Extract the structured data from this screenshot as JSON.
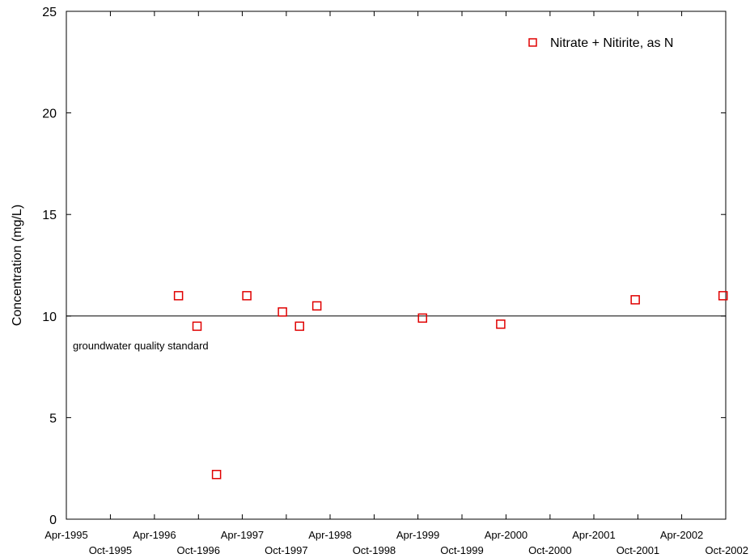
{
  "chart_data": {
    "type": "scatter",
    "ylabel": "Concentration (mg/L)",
    "ylim": [
      0,
      25
    ],
    "yticks": [
      "0",
      "5",
      "10",
      "15",
      "20",
      "25"
    ],
    "xlim": [
      "1995-04-01",
      "2002-10-01"
    ],
    "xticks_top_row": [
      {
        "date": "1995-04-01",
        "label": "Apr-1995"
      },
      {
        "date": "1996-04-01",
        "label": "Apr-1996"
      },
      {
        "date": "1997-04-01",
        "label": "Apr-1997"
      },
      {
        "date": "1998-04-01",
        "label": "Apr-1998"
      },
      {
        "date": "1999-04-01",
        "label": "Apr-1999"
      },
      {
        "date": "2000-04-01",
        "label": "Apr-2000"
      },
      {
        "date": "2001-04-01",
        "label": "Apr-2001"
      },
      {
        "date": "2002-04-01",
        "label": "Apr-2002"
      }
    ],
    "xticks_bottom_row": [
      {
        "date": "1995-10-01",
        "label": "Oct-1995"
      },
      {
        "date": "1996-10-01",
        "label": "Oct-1996"
      },
      {
        "date": "1997-10-01",
        "label": "Oct-1997"
      },
      {
        "date": "1998-10-01",
        "label": "Oct-1998"
      },
      {
        "date": "1999-10-01",
        "label": "Oct-1999"
      },
      {
        "date": "2000-10-01",
        "label": "Oct-2000"
      },
      {
        "date": "2001-10-01",
        "label": "Oct-2001"
      },
      {
        "date": "2002-10-01",
        "label": "Oct-2002"
      }
    ],
    "series": [
      {
        "name": "Nitrate + Nitirite, as N",
        "color": "#e00000",
        "marker": "open-square",
        "points": [
          {
            "x": "1996-07-10",
            "y": 11.0
          },
          {
            "x": "1996-09-25",
            "y": 9.5
          },
          {
            "x": "1996-12-15",
            "y": 2.2
          },
          {
            "x": "1997-04-20",
            "y": 11.0
          },
          {
            "x": "1997-09-15",
            "y": 10.2
          },
          {
            "x": "1997-11-25",
            "y": 9.5
          },
          {
            "x": "1998-02-05",
            "y": 10.5
          },
          {
            "x": "1999-04-20",
            "y": 9.9
          },
          {
            "x": "2000-03-10",
            "y": 9.6
          },
          {
            "x": "2001-09-20",
            "y": 10.8
          },
          {
            "x": "2002-09-20",
            "y": 11.0
          }
        ]
      }
    ],
    "reference_line": {
      "y": 10,
      "label": "groundwater quality standard",
      "color": "#000000"
    },
    "legend_position": "top-right",
    "grid": false
  }
}
